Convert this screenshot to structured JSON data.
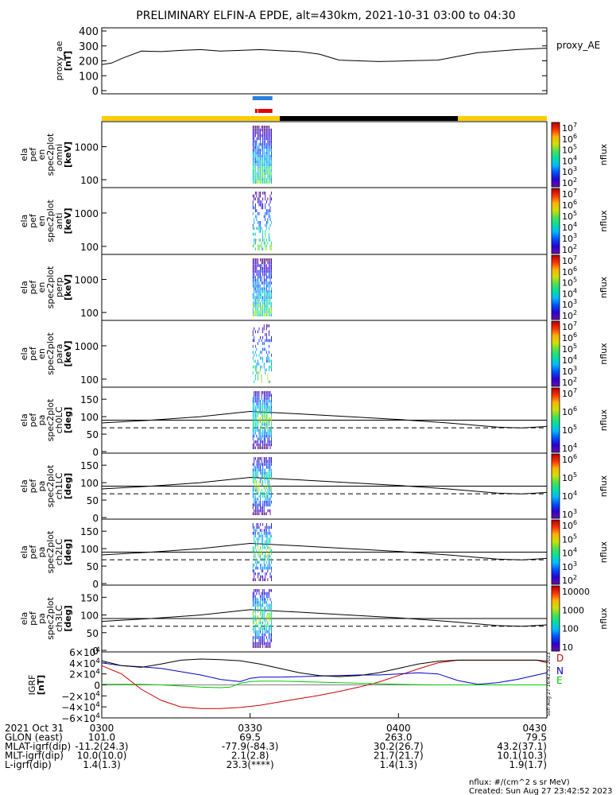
{
  "title": "PRELIMINARY ELFIN-A EPDE, alt=430km, 2021-10-31 03:00 to 04:30",
  "chart_data": [
    {
      "type": "line",
      "id": "proxy_ae",
      "ylabel_lines": [
        "proxy_ae",
        "[nT]"
      ],
      "ylim": [
        0,
        400
      ],
      "yticks": [
        "400",
        "300",
        "200",
        "100",
        "0"
      ],
      "series": [
        {
          "name": "proxy_AE",
          "x": [
            0,
            2,
            4,
            8,
            12,
            16,
            20,
            24,
            28,
            32,
            36,
            40,
            44,
            48,
            52,
            56,
            60,
            64,
            68,
            72,
            76,
            80,
            84,
            88,
            90
          ],
          "y": [
            175,
            185,
            215,
            265,
            262,
            270,
            275,
            265,
            270,
            275,
            268,
            262,
            245,
            205,
            200,
            195,
            198,
            202,
            205,
            230,
            255,
            265,
            275,
            282,
            285
          ]
        }
      ]
    },
    {
      "type": "heatmap",
      "id": "spec-omni",
      "ylabel_lines": [
        "ela",
        "pef",
        "en",
        "spec2plot",
        "omni",
        "[keV]"
      ],
      "yticks": [
        "1000",
        "100"
      ],
      "colorbar": {
        "label": "nflux",
        "ticks": [
          "10^7",
          "10^6",
          "10^5",
          "10^4",
          "10^3",
          "10^2"
        ]
      }
    },
    {
      "type": "heatmap",
      "id": "spec-anti",
      "ylabel_lines": [
        "ela",
        "pef",
        "en",
        "spec2plot",
        "anti",
        "[keV]"
      ],
      "yticks": [
        "1000",
        "100"
      ],
      "colorbar": {
        "label": "nflux",
        "ticks": [
          "10^7",
          "10^6",
          "10^5",
          "10^4",
          "10^3",
          "10^2"
        ]
      }
    },
    {
      "type": "heatmap",
      "id": "spec-perp",
      "ylabel_lines": [
        "ela",
        "pef",
        "en",
        "spec2plot",
        "perp",
        "[keV]"
      ],
      "yticks": [
        "1000",
        "100"
      ],
      "colorbar": {
        "label": "nflux",
        "ticks": [
          "10^7",
          "10^6",
          "10^5",
          "10^4",
          "10^3",
          "10^2"
        ]
      }
    },
    {
      "type": "heatmap",
      "id": "spec-para",
      "ylabel_lines": [
        "ela",
        "pef",
        "en",
        "spec2plot",
        "para",
        "[keV]"
      ],
      "yticks": [
        "1000",
        "100"
      ],
      "colorbar": {
        "label": "nflux",
        "ticks": [
          "10^7",
          "10^6",
          "10^5",
          "10^4",
          "10^3",
          "10^2"
        ]
      }
    },
    {
      "type": "heatmap",
      "id": "pa-ch0",
      "ylabel_lines": [
        "ela",
        "pef",
        "pa",
        "spec2plot",
        "ch0LC",
        "[deg]"
      ],
      "yticks": [
        "150",
        "100",
        "50",
        "0"
      ],
      "colorbar": {
        "label": "nflux",
        "ticks": [
          "10^7",
          "10^6",
          "10^5",
          "10^4"
        ]
      }
    },
    {
      "type": "heatmap",
      "id": "pa-ch1",
      "ylabel_lines": [
        "ela",
        "pef",
        "pa",
        "spec2plot",
        "ch1LC",
        "[deg]"
      ],
      "yticks": [
        "150",
        "100",
        "50",
        "0"
      ],
      "colorbar": {
        "label": "nflux",
        "ticks": [
          "10^6",
          "10^5",
          "10^4",
          "10^3"
        ]
      }
    },
    {
      "type": "heatmap",
      "id": "pa-ch2",
      "ylabel_lines": [
        "ela",
        "pef",
        "pa",
        "spec2plot",
        "ch2LC",
        "[deg]"
      ],
      "yticks": [
        "150",
        "100",
        "50",
        "0"
      ],
      "colorbar": {
        "label": "nflux",
        "ticks": [
          "10^6",
          "10^5",
          "10^4",
          "10^3",
          "10^2"
        ]
      }
    },
    {
      "type": "heatmap",
      "id": "pa-ch3",
      "ylabel_lines": [
        "ela",
        "pef",
        "pa",
        "spec2plot",
        "ch3LC",
        "[deg]"
      ],
      "yticks": [
        "150",
        "100",
        "50",
        "0"
      ],
      "colorbar": {
        "label": "nflux",
        "ticks": [
          "10000",
          "1000",
          "100",
          "10"
        ]
      }
    },
    {
      "type": "line",
      "id": "igrf",
      "ylabel_lines": [
        "IGRF",
        "[nT]"
      ],
      "ylim": [
        -60000,
        60000
      ],
      "yticks": [
        "6×10^4",
        "4×10^4",
        "2×10^4",
        "0",
        "−2×10^4",
        "−4×10^4",
        "−6×10^4"
      ],
      "series": [
        {
          "name": "D",
          "color": "#cc0000",
          "x": [
            0,
            4,
            8,
            12,
            16,
            20,
            24,
            28,
            32,
            36,
            40,
            44,
            48,
            52,
            56,
            60,
            64,
            68,
            72,
            76,
            80,
            84,
            88,
            90
          ],
          "y": [
            35000,
            20000,
            -8000,
            -28000,
            -40000,
            -43000,
            -43000,
            -41000,
            -37000,
            -31000,
            -25000,
            -19000,
            -12000,
            -4000,
            5000,
            17000,
            29000,
            40000,
            45000,
            45000,
            45000,
            45000,
            45000,
            40000
          ]
        },
        {
          "name": "N",
          "color": "#0000cc",
          "x": [
            0,
            4,
            8,
            12,
            16,
            20,
            24,
            28,
            30,
            32,
            36,
            40,
            44,
            48,
            52,
            56,
            60,
            64,
            68,
            72,
            76,
            80,
            84,
            88,
            90
          ],
          "y": [
            40000,
            35000,
            33000,
            30000,
            24000,
            18000,
            10000,
            6000,
            12000,
            14000,
            14000,
            15000,
            16000,
            17000,
            18000,
            18000,
            20000,
            22000,
            20000,
            8000,
            1000,
            4000,
            10000,
            18000,
            22000
          ]
        },
        {
          "name": "E",
          "color": "#00cc00",
          "x": [
            0,
            8,
            12,
            16,
            20,
            24,
            26,
            28,
            30,
            32,
            36,
            40,
            44,
            48,
            52,
            56,
            60,
            64,
            68,
            72,
            76,
            80,
            84,
            88,
            90
          ],
          "y": [
            1000,
            1000,
            0,
            -2000,
            -4000,
            -5000,
            -4000,
            3000,
            6000,
            7000,
            7000,
            6000,
            5000,
            4000,
            3000,
            2000,
            1000,
            500,
            0,
            0,
            0,
            0,
            0,
            0,
            0
          ]
        },
        {
          "name": "",
          "color": "#000000",
          "x": [
            0,
            4,
            8,
            12,
            16,
            20,
            24,
            28,
            32,
            36,
            40,
            44,
            48,
            52,
            56,
            60,
            64,
            68,
            72,
            76,
            80,
            84,
            88,
            90
          ],
          "y": [
            44000,
            35000,
            32000,
            38000,
            45000,
            47000,
            46000,
            44000,
            38000,
            30000,
            22000,
            17000,
            15000,
            17000,
            22000,
            30000,
            38000,
            43000,
            45000,
            45000,
            45000,
            45000,
            45000,
            43000
          ]
        }
      ]
    }
  ],
  "xaxis": {
    "rows": [
      {
        "label": "2021 Oct 31",
        "values": [
          "0300",
          "0330",
          "0400",
          "0430"
        ]
      },
      {
        "label": "GLON (east)",
        "values": [
          "101.0",
          "69.5",
          "263.0",
          "79.5"
        ]
      },
      {
        "label": "MLAT-igrf(dip)",
        "values": [
          "-11.2(24.3)",
          "-77.9(-84.3)",
          "30.2(26.7)",
          "43.2(37.1)"
        ]
      },
      {
        "label": "MLT-igrf(dip)",
        "values": [
          "10.0(10.0)",
          "2.1(2.8)",
          "21.7(21.7)",
          "10.1(10.3)"
        ]
      },
      {
        "label": "L-igrf(dip)",
        "values": [
          "1.4(1.3)",
          "23.3(****)",
          "1.4(1.3)",
          "1.9(1.7)"
        ]
      }
    ]
  },
  "footer": {
    "units": "nflux: #/(cm^2 s sr MeV)",
    "created": "Created: Sun Aug 27 23:42:52 2023",
    "side_stamp": "Sun Aug 27 16:42:52 2023"
  },
  "colors": {
    "sun": "#ffcc00",
    "shadow": "#000000",
    "science_blue": "#2a7fe0",
    "science_red": "#e00000"
  }
}
